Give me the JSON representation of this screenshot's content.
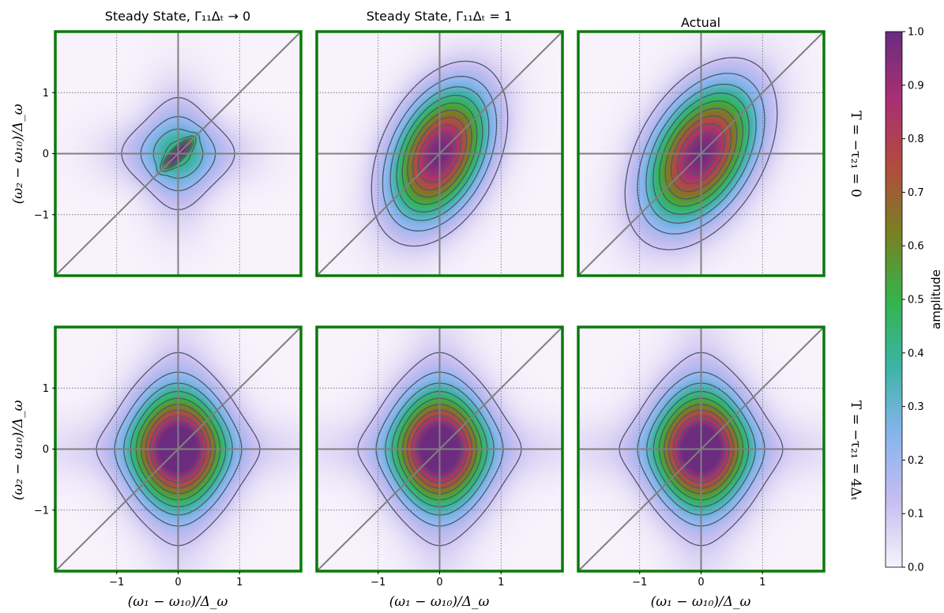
{
  "chart_data": {
    "type": "heatmap",
    "layout": "2x3 grid of contour-filled heatmaps with shared colorbar",
    "column_titles": [
      "Steady State, Γ₁₁Δₜ → 0",
      "Steady State, Γ₁₁Δₜ = 1",
      "Actual"
    ],
    "row_labels": [
      "T = −τ₂₁ = 0",
      "T = −τ₂₁ = 4Δₜ"
    ],
    "xlabel": "(ω₁ − ω₁₀)/Δ_ω",
    "ylabel": "(ω₂ − ω₁₀)/Δ_ω",
    "xlim": [
      -2,
      2
    ],
    "ylim": [
      -2,
      2
    ],
    "xticks": [
      -1,
      0,
      1
    ],
    "yticks": [
      -1,
      0,
      1
    ],
    "xtick_labels": [
      "−1",
      "0",
      "1"
    ],
    "ytick_labels": [
      "−1",
      "0",
      "1"
    ],
    "grid": "dotted at ticks",
    "reference_lines": [
      "x = 0",
      "y = 0",
      "y = x"
    ],
    "contour_levels": [
      0.1,
      0.2,
      0.3,
      0.4,
      0.5,
      0.6,
      0.7,
      0.8,
      0.9
    ],
    "colorbar": {
      "label": "amplitude",
      "range": [
        0.0,
        1.0
      ],
      "ticks": [
        0.0,
        0.1,
        0.2,
        0.3,
        0.4,
        0.5,
        0.6,
        0.7,
        0.8,
        0.9,
        1.0
      ],
      "tick_labels": [
        "0.0",
        "0.1",
        "0.2",
        "0.3",
        "0.4",
        "0.5",
        "0.6",
        "0.7",
        "0.8",
        "0.9",
        "1.0"
      ],
      "colormap_stops": [
        "#f7f2fb",
        "#c6bdf0",
        "#86b4ee",
        "#3cb4a6",
        "#34b34a",
        "#7a7f22",
        "#b34a40",
        "#a82f73",
        "#6b2c80"
      ]
    },
    "panels": [
      {
        "row": 0,
        "col": 0,
        "peak": 1.0,
        "center": [
          0,
          0
        ],
        "sigma_major": 0.18,
        "sigma_minor": 0.05,
        "angle_deg": 45,
        "wing_sigma_x": 0.7,
        "wing_sigma_y": 0.35,
        "wing_amp": 0.22
      },
      {
        "row": 0,
        "col": 1,
        "peak": 1.0,
        "center": [
          0,
          0
        ],
        "sigma_major": 0.75,
        "sigma_minor": 0.45,
        "angle_deg": 65,
        "wing_sigma_x": 1.4,
        "wing_sigma_y": 1.4,
        "wing_amp": 0.0
      },
      {
        "row": 0,
        "col": 2,
        "peak": 1.0,
        "center": [
          0,
          0
        ],
        "sigma_major": 0.8,
        "sigma_minor": 0.48,
        "angle_deg": 60,
        "wing_sigma_x": 1.4,
        "wing_sigma_y": 1.4,
        "wing_amp": 0.0
      },
      {
        "row": 1,
        "col": 0,
        "peak": 1.0,
        "center": [
          0,
          0
        ],
        "sigma_major": 0.62,
        "sigma_minor": 0.5,
        "angle_deg": 90,
        "wing_sigma_x": 1.6,
        "wing_sigma_y": 0.35,
        "wing_amp": 0.1
      },
      {
        "row": 1,
        "col": 1,
        "peak": 1.0,
        "center": [
          0,
          0
        ],
        "sigma_major": 0.62,
        "sigma_minor": 0.5,
        "angle_deg": 90,
        "wing_sigma_x": 1.6,
        "wing_sigma_y": 0.35,
        "wing_amp": 0.1
      },
      {
        "row": 1,
        "col": 2,
        "peak": 1.0,
        "center": [
          0,
          0
        ],
        "sigma_major": 0.62,
        "sigma_minor": 0.5,
        "angle_deg": 90,
        "wing_sigma_x": 1.6,
        "wing_sigma_y": 0.35,
        "wing_amp": 0.1
      }
    ],
    "panel_frame_color": "#0a7a0a",
    "reference_line_color": "#808080",
    "contour_color": "#4a5a6a"
  }
}
